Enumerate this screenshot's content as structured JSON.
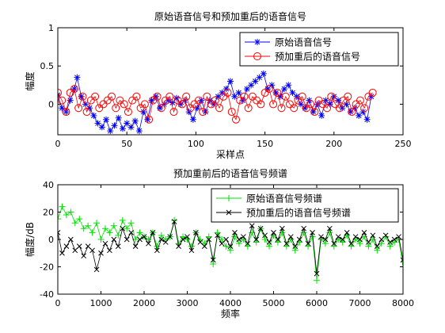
{
  "chart_data": [
    {
      "type": "line",
      "title": "原始语音信号和预加重后的语音信号",
      "xlabel": "采样点",
      "ylabel": "幅度",
      "xlim": [
        0,
        250
      ],
      "ylim": [
        -0.4,
        1
      ],
      "xticks": [
        0,
        50,
        100,
        150,
        200,
        250
      ],
      "yticks": [
        0,
        0.5,
        1
      ],
      "grid": false,
      "legend_position": "top-right",
      "series": [
        {
          "name": "原始语音信号",
          "color": "#0000ff",
          "marker": "star",
          "x": [
            0,
            3,
            6,
            9,
            12,
            14,
            17,
            20,
            23,
            26,
            29,
            32,
            35,
            38,
            41,
            44,
            47,
            50,
            53,
            56,
            59,
            62,
            65,
            68,
            71,
            74,
            77,
            80,
            83,
            86,
            89,
            92,
            95,
            98,
            101,
            104,
            107,
            110,
            113,
            116,
            119,
            122,
            125,
            128,
            131,
            134,
            137,
            140,
            143,
            146,
            149,
            152,
            155,
            158,
            161,
            164,
            167,
            170,
            173,
            176,
            179,
            182,
            185,
            188,
            191,
            194,
            197,
            200,
            203,
            206,
            209,
            212,
            215,
            218,
            221,
            224,
            227
          ],
          "values": [
            0.12,
            -0.05,
            -0.1,
            0.05,
            0.2,
            0.35,
            0.1,
            0.0,
            -0.05,
            -0.15,
            -0.25,
            -0.3,
            -0.2,
            -0.35,
            -0.28,
            -0.18,
            -0.32,
            -0.25,
            -0.3,
            -0.22,
            -0.35,
            -0.1,
            -0.2,
            0.05,
            0.1,
            -0.05,
            0.0,
            0.05,
            0.02,
            0.08,
            0.0,
            0.05,
            -0.1,
            -0.2,
            -0.05,
            0.05,
            -0.1,
            0.05,
            0.0,
            0.1,
            0.15,
            0.2,
            0.3,
            0.1,
            0.15,
            0.05,
            0.2,
            0.25,
            0.3,
            0.35,
            0.4,
            0.2,
            0.25,
            0.15,
            0.1,
            0.2,
            0.25,
            0.15,
            0.1,
            0.0,
            -0.05,
            0.05,
            -0.1,
            0.0,
            -0.15,
            0.05,
            0.0,
            0.1,
            0.05,
            -0.05,
            0.0,
            -0.1,
            -0.05,
            -0.15,
            -0.1,
            -0.2,
            0.1
          ]
        },
        {
          "name": "预加重后的语音信号",
          "color": "#ff0000",
          "marker": "circle",
          "x": [
            0,
            3,
            6,
            9,
            12,
            15,
            18,
            21,
            24,
            27,
            30,
            33,
            36,
            39,
            42,
            45,
            48,
            51,
            54,
            57,
            60,
            63,
            66,
            69,
            72,
            75,
            78,
            81,
            84,
            87,
            90,
            93,
            96,
            99,
            102,
            105,
            108,
            111,
            114,
            117,
            120,
            123,
            126,
            129,
            132,
            135,
            138,
            141,
            144,
            147,
            150,
            153,
            156,
            159,
            162,
            165,
            168,
            171,
            174,
            177,
            180,
            183,
            186,
            189,
            192,
            195,
            198,
            201,
            204,
            207,
            210,
            213,
            216,
            219,
            222,
            225,
            228
          ],
          "values": [
            0.15,
            0.05,
            -0.1,
            0.15,
            0.2,
            -0.05,
            0.1,
            -0.1,
            0.05,
            0.1,
            -0.05,
            0.0,
            0.05,
            0.1,
            -0.05,
            0.05,
            0.0,
            -0.1,
            0.05,
            0.1,
            -0.05,
            0.0,
            -0.2,
            0.05,
            0.1,
            -0.05,
            0.05,
            0.1,
            -0.1,
            0.05,
            0.0,
            0.1,
            -0.05,
            0.0,
            0.05,
            -0.1,
            0.1,
            0.0,
            0.05,
            -0.05,
            0.1,
            0.15,
            -0.1,
            -0.2,
            0.05,
            0.1,
            -0.05,
            0.1,
            0.05,
            0.0,
            0.15,
            0.2,
            0.0,
            0.15,
            -0.05,
            0.1,
            0.0,
            -0.05,
            0.05,
            0.1,
            -0.05,
            0.0,
            -0.1,
            0.05,
            0.0,
            -0.05,
            0.1,
            0.0,
            -0.05,
            0.05,
            0.1,
            -0.1,
            0.0,
            0.05,
            -0.05,
            0.1,
            0.15
          ]
        }
      ]
    },
    {
      "type": "line",
      "title": "预加重前后的语音信号频谱",
      "xlabel": "频率",
      "ylabel": "幅度/dB",
      "xlim": [
        0,
        8000
      ],
      "ylim": [
        -40,
        40
      ],
      "xticks": [
        0,
        1000,
        2000,
        3000,
        4000,
        5000,
        6000,
        7000,
        8000
      ],
      "yticks": [
        -40,
        -20,
        0,
        20,
        40
      ],
      "grid": false,
      "legend_position": "top-right",
      "series": [
        {
          "name": "原始语音信号频谱",
          "color": "#00e000",
          "marker": "plus",
          "x": [
            0,
            100,
            200,
            300,
            400,
            500,
            600,
            700,
            800,
            900,
            1000,
            1100,
            1200,
            1300,
            1400,
            1500,
            1600,
            1700,
            1800,
            1900,
            2000,
            2100,
            2200,
            2300,
            2400,
            2500,
            2600,
            2700,
            2800,
            2900,
            3000,
            3100,
            3200,
            3300,
            3400,
            3500,
            3600,
            3700,
            3800,
            3900,
            4000,
            4100,
            4200,
            4300,
            4400,
            4500,
            4600,
            4700,
            4800,
            4900,
            5000,
            5100,
            5200,
            5300,
            5400,
            5500,
            5600,
            5700,
            5800,
            5900,
            6000,
            6100,
            6200,
            6300,
            6400,
            6500,
            6600,
            6700,
            6800,
            6900,
            7000,
            7100,
            7200,
            7300,
            7400,
            7500,
            7600,
            7700,
            7800,
            7900,
            8000
          ],
          "values": [
            15,
            24,
            18,
            20,
            12,
            15,
            8,
            10,
            5,
            12,
            0,
            8,
            5,
            10,
            3,
            14,
            8,
            12,
            0,
            5,
            2,
            0,
            5,
            -5,
            3,
            0,
            2,
            14,
            -3,
            2,
            0,
            -5,
            5,
            0,
            -3,
            2,
            -18,
            5,
            0,
            -5,
            -8,
            2,
            -3,
            0,
            -5,
            5,
            -2,
            8,
            0,
            -5,
            3,
            -2,
            5,
            -5,
            0,
            -8,
            -2,
            5,
            -5,
            2,
            -30,
            0,
            -3,
            5,
            -5,
            0,
            -2,
            3,
            -5,
            0,
            -3,
            2,
            -5,
            0,
            -8,
            -3,
            2,
            -5,
            -2,
            0,
            -20
          ]
        },
        {
          "name": "预加重后的语音信号频谱",
          "color": "#000000",
          "marker": "cross",
          "x": [
            0,
            100,
            200,
            300,
            400,
            500,
            600,
            700,
            800,
            900,
            1000,
            1100,
            1200,
            1300,
            1400,
            1500,
            1600,
            1700,
            1800,
            1900,
            2000,
            2100,
            2200,
            2300,
            2400,
            2500,
            2600,
            2700,
            2800,
            2900,
            3000,
            3100,
            3200,
            3300,
            3400,
            3500,
            3600,
            3700,
            3800,
            3900,
            4000,
            4100,
            4200,
            4300,
            4400,
            4500,
            4600,
            4700,
            4800,
            4900,
            5000,
            5100,
            5200,
            5300,
            5400,
            5500,
            5600,
            5700,
            5800,
            5900,
            6000,
            6100,
            6200,
            6300,
            6400,
            6500,
            6600,
            6700,
            6800,
            6900,
            7000,
            7100,
            7200,
            7300,
            7400,
            7500,
            7600,
            7700,
            7800,
            7900,
            8000
          ],
          "values": [
            5,
            -10,
            -5,
            0,
            -8,
            -5,
            -12,
            -5,
            -8,
            -22,
            -10,
            -3,
            -8,
            0,
            -5,
            8,
            0,
            5,
            -5,
            0,
            2,
            -3,
            5,
            -8,
            0,
            -2,
            2,
            13,
            -5,
            0,
            2,
            -8,
            5,
            -2,
            -5,
            0,
            -15,
            3,
            -3,
            0,
            -5,
            5,
            0,
            2,
            -3,
            10,
            0,
            8,
            3,
            -2,
            5,
            0,
            8,
            -3,
            2,
            -5,
            0,
            8,
            -3,
            5,
            -25,
            2,
            0,
            8,
            -3,
            2,
            0,
            5,
            -3,
            2,
            0,
            5,
            -2,
            3,
            -5,
            0,
            3,
            -2,
            0,
            2,
            -15
          ]
        }
      ]
    }
  ]
}
